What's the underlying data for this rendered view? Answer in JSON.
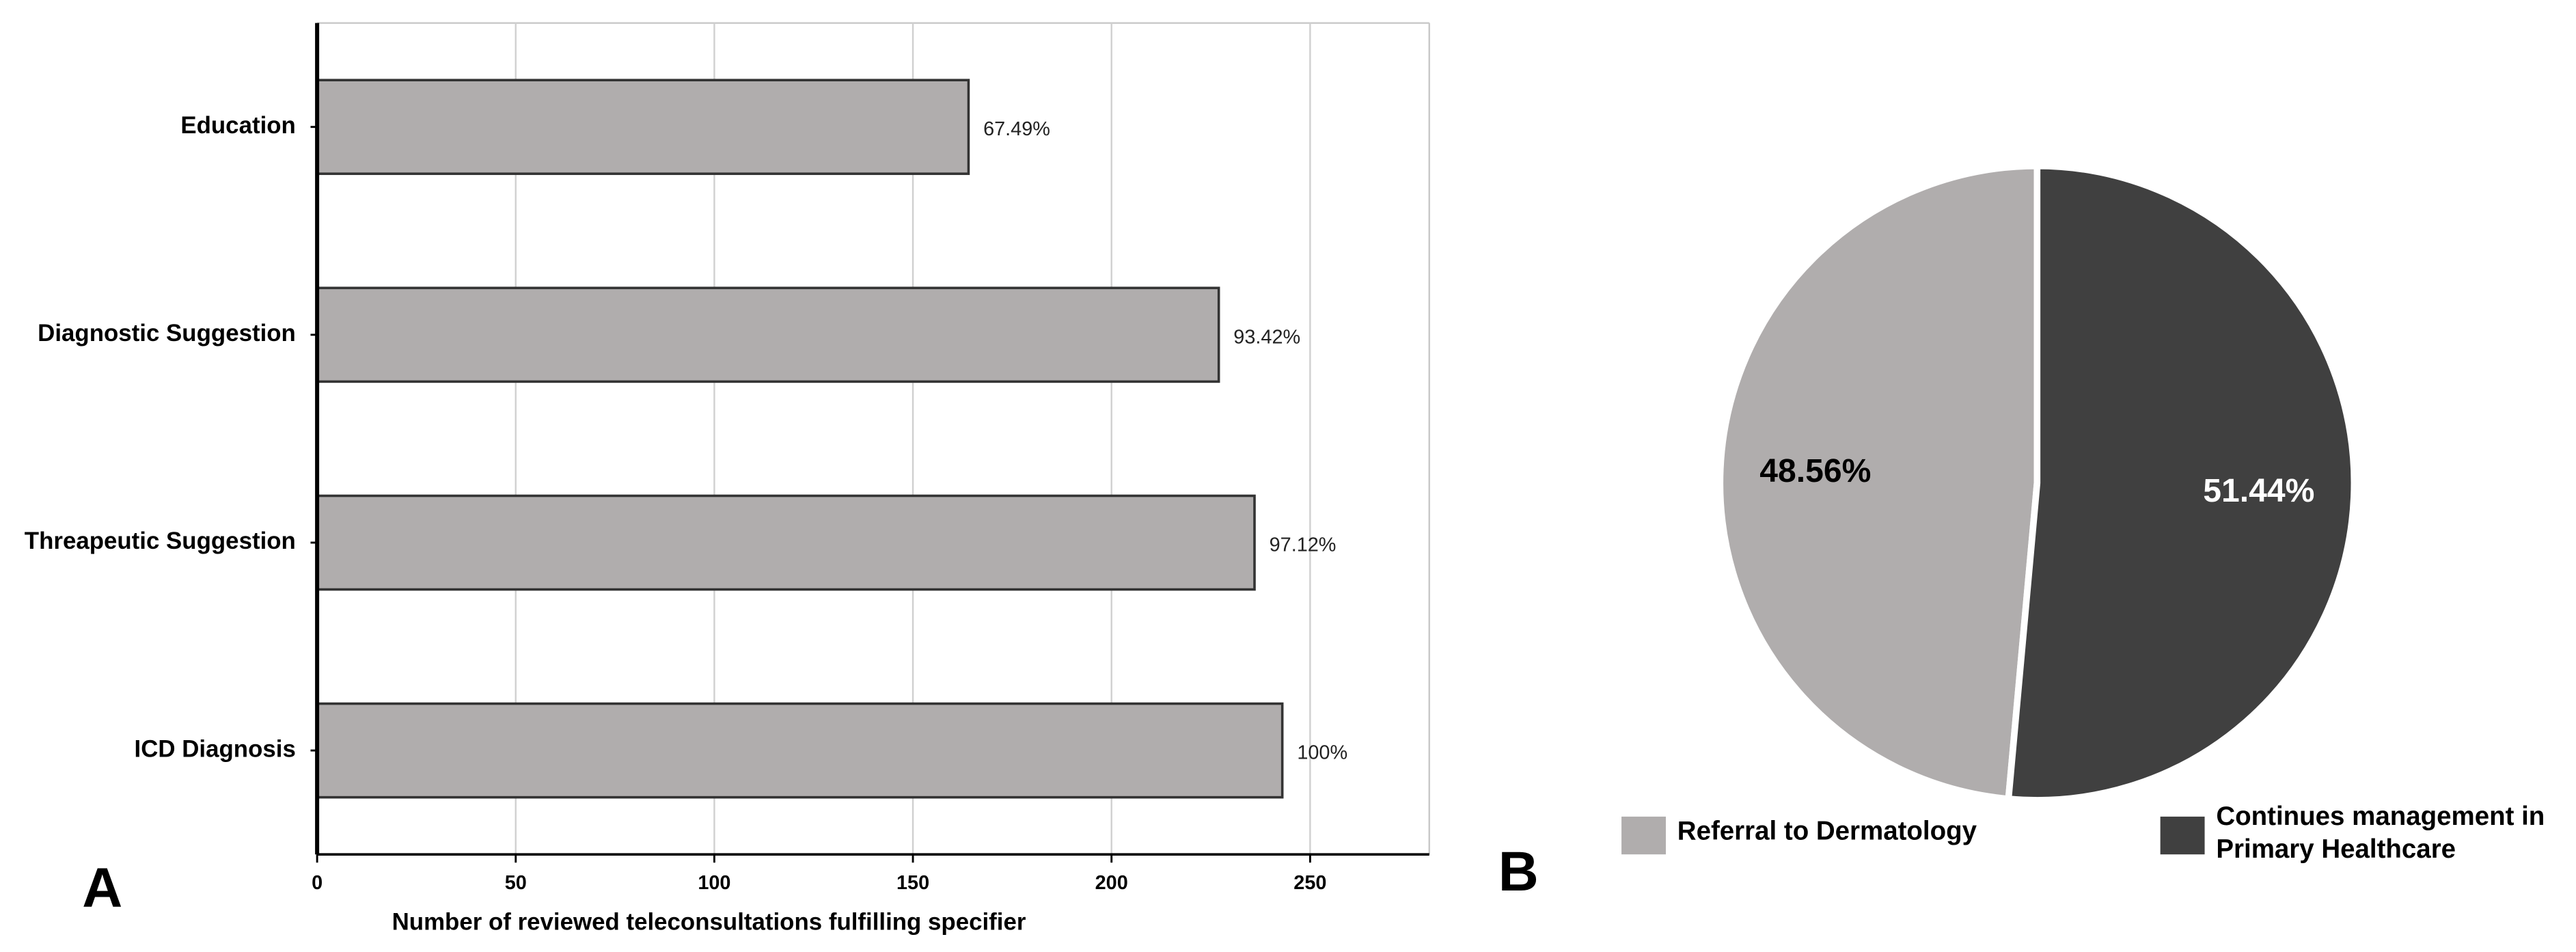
{
  "chart_data": [
    {
      "type": "bar",
      "orientation": "horizontal",
      "panel_label": "A",
      "xlabel": "Number of reviewed teleconsultations fulfilling specifier",
      "categories": [
        "Education",
        "Diagnostic Suggestion",
        "Threapeutic Suggestion",
        "ICD Diagnosis"
      ],
      "values": [
        164,
        227,
        236,
        243
      ],
      "value_labels": [
        "67.49%",
        "93.42%",
        "97.12%",
        "100%"
      ],
      "color": "#b0adad",
      "xlim": [
        0,
        280
      ],
      "xticks": [
        0,
        50,
        100,
        150,
        200,
        250
      ],
      "grid": true
    },
    {
      "type": "pie",
      "panel_label": "B",
      "categories": [
        "Referral to Dermatology",
        "Continues management in Primary Healthcare"
      ],
      "values": [
        48.56,
        51.44
      ],
      "value_labels": [
        "48.56%",
        "51.44%"
      ],
      "colors": [
        "#b0adad",
        "#404040"
      ],
      "label_colors": [
        "#000000",
        "#ffffff"
      ]
    }
  ]
}
